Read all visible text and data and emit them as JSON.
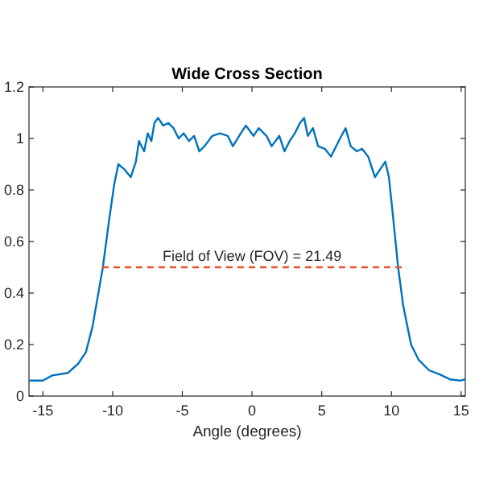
{
  "chart_data": {
    "type": "line",
    "title": "Wide Cross Section",
    "xlabel": "Angle (degrees)",
    "xlim": [
      -16,
      15.3
    ],
    "xticks": [
      -15,
      -10,
      -5,
      0,
      5,
      10,
      15
    ],
    "ylim": [
      0,
      1.2
    ],
    "yticks": [
      0,
      0.2,
      0.4,
      0.6,
      0.8,
      1,
      1.2
    ],
    "grid": false,
    "annotations": [
      {
        "text": "Field of View (FOV) = 21.49",
        "x": 0,
        "y": 0.5
      }
    ],
    "series": [
      {
        "color": "#0072bd",
        "line_style": "solid",
        "x": [
          -16,
          -15,
          -14.33,
          -13.2,
          -12.48,
          -11.92,
          -11.44,
          -10.7,
          -10.26,
          -9.89,
          -9.59,
          -9.15,
          -8.7,
          -8.33,
          -8.11,
          -7.74,
          -7.48,
          -7.22,
          -7,
          -6.74,
          -6.37,
          -6,
          -5.63,
          -5.26,
          -4.9,
          -4.52,
          -4.15,
          -3.78,
          -3.41,
          -2.85,
          -2.3,
          -1.74,
          -1.37,
          -0.81,
          -0.44,
          0.11,
          0.48,
          1.04,
          1.41,
          1.96,
          2.33,
          2.7,
          3.07,
          3.44,
          3.74,
          4,
          4.37,
          4.74,
          5.22,
          5.67,
          6.22,
          6.71,
          7.08,
          7.52,
          7.89,
          8.33,
          8.82,
          9.19,
          9.56,
          9.82,
          10.11,
          10.48,
          10.85,
          11.41,
          11.96,
          12.7,
          13.44,
          14.19,
          14.93,
          15.3
        ],
        "values": [
          0.06,
          0.06,
          0.08,
          0.09,
          0.125,
          0.17,
          0.27,
          0.5,
          0.68,
          0.82,
          0.9,
          0.88,
          0.85,
          0.91,
          0.99,
          0.95,
          1.02,
          0.99,
          1.06,
          1.08,
          1.05,
          1.06,
          1.04,
          1,
          1.02,
          0.99,
          1.01,
          0.95,
          0.97,
          1.01,
          1.02,
          1.01,
          0.97,
          1.02,
          1.05,
          1.01,
          1.04,
          1.01,
          0.97,
          1.01,
          0.95,
          0.99,
          1.02,
          1.06,
          1.08,
          1.01,
          1.04,
          0.97,
          0.96,
          0.93,
          0.99,
          1.04,
          0.97,
          0.95,
          0.96,
          0.93,
          0.85,
          0.88,
          0.91,
          0.85,
          0.7,
          0.5,
          0.35,
          0.2,
          0.14,
          0.1,
          0.085,
          0.065,
          0.06,
          0.065
        ]
      },
      {
        "color": "#e8502a",
        "line_style": "dashed",
        "x": [
          -10.75,
          10.74
        ],
        "values": [
          0.5,
          0.5
        ]
      }
    ]
  }
}
